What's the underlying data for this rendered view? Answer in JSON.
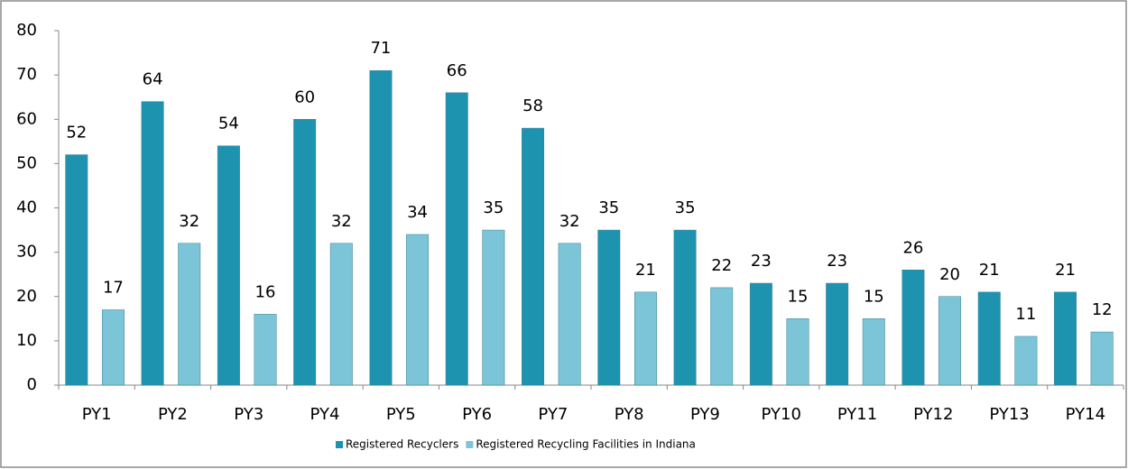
{
  "chart_data": {
    "type": "bar",
    "categories": [
      "PY1",
      "PY2",
      "PY3",
      "PY4",
      "PY5",
      "PY6",
      "PY7",
      "PY8",
      "PY9",
      "PY10",
      "PY11",
      "PY12",
      "PY13",
      "PY14"
    ],
    "series": [
      {
        "name": "Registered Recyclers",
        "color": "#1e93b0",
        "values": [
          52,
          64,
          54,
          60,
          71,
          66,
          58,
          35,
          35,
          23,
          23,
          26,
          21,
          21
        ]
      },
      {
        "name": "Registered Recycling Facilities in Indiana",
        "color": "#7cc4d8",
        "values": [
          17,
          32,
          16,
          32,
          34,
          35,
          32,
          21,
          22,
          15,
          15,
          20,
          11,
          12
        ]
      }
    ],
    "ylim": [
      0,
      80
    ],
    "yticks": [
      0,
      10,
      20,
      30,
      40,
      50,
      60,
      70,
      80
    ],
    "legend": "bottom",
    "grid": false
  }
}
